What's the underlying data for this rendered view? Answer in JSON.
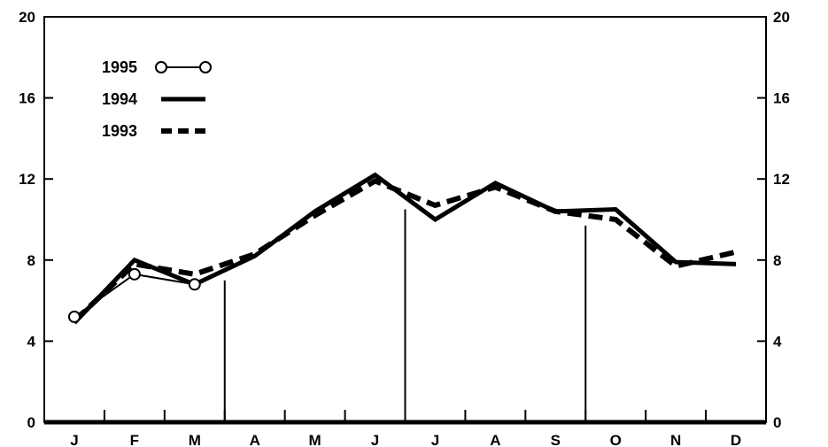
{
  "chart_data": {
    "type": "line",
    "categories": [
      "J",
      "F",
      "M",
      "A",
      "M",
      "J",
      "J",
      "A",
      "S",
      "O",
      "N",
      "D"
    ],
    "ylim": [
      0,
      20
    ],
    "yticks": [
      0,
      4,
      8,
      12,
      16,
      20
    ],
    "grid": false,
    "legend_position": "top-left",
    "series": [
      {
        "name": "1995",
        "style": "line-open-circle",
        "values": [
          5.2,
          7.3,
          6.8,
          null,
          null,
          null,
          null,
          null,
          null,
          null,
          null,
          null
        ]
      },
      {
        "name": "1994",
        "style": "solid-thick",
        "values": [
          4.9,
          8.0,
          6.8,
          8.2,
          10.4,
          12.2,
          10.0,
          11.8,
          10.4,
          10.5,
          7.9,
          7.8
        ]
      },
      {
        "name": "1993",
        "style": "dashed-thick",
        "values": [
          5.0,
          7.8,
          7.3,
          8.3,
          10.2,
          11.9,
          10.7,
          11.6,
          10.4,
          10.0,
          7.7,
          8.4
        ]
      }
    ],
    "quarter_dividers": [
      {
        "after_category_index": 2,
        "top_value": 7.0
      },
      {
        "after_category_index": 5,
        "top_value": 10.5
      },
      {
        "after_category_index": 8,
        "top_value": 9.7
      }
    ],
    "colors": {
      "line": "#000000",
      "background": "#ffffff",
      "marker_fill": "#ffffff"
    }
  }
}
